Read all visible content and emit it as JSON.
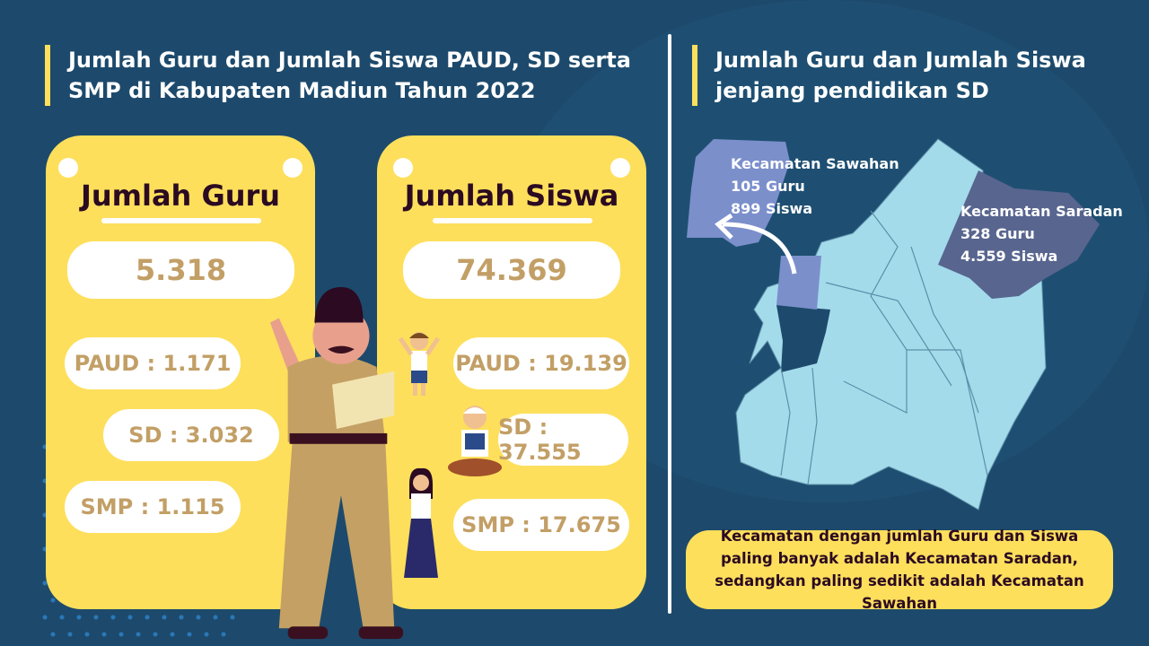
{
  "left_title": "Jumlah Guru dan Jumlah Siswa PAUD, SD serta SMP di Kabupaten Madiun Tahun 2022",
  "right_title": "Jumlah Guru dan Jumlah Siswa jenjang pendidikan SD",
  "guru": {
    "title": "Jumlah Guru",
    "total": "5.318",
    "paud": "PAUD : 1.171",
    "sd": "SD : 3.032",
    "smp": "SMP : 1.115"
  },
  "siswa": {
    "title": "Jumlah Siswa",
    "total": "74.369",
    "paud": "PAUD : 19.139",
    "sd": "SD : 37.555",
    "smp": "SMP : 17.675"
  },
  "map": {
    "sawahan": {
      "name": "Kecamatan Sawahan",
      "guru": "105 Guru",
      "siswa": "899 Siswa",
      "color": "#7b8fcb"
    },
    "saradan": {
      "name": "Kecamatan Saradan",
      "guru": "328 Guru",
      "siswa": "4.559 Siswa",
      "color": "#58658f"
    },
    "base_color": "#a3dbeb"
  },
  "note": "Kecamatan dengan jumlah Guru dan Siswa paling banyak adalah Kecamatan Saradan, sedangkan paling sedikit adalah Kecamatan Sawahan",
  "colors": {
    "background": "#1d4a6c",
    "accent": "#fddf5c",
    "value_text": "#c29f66"
  }
}
